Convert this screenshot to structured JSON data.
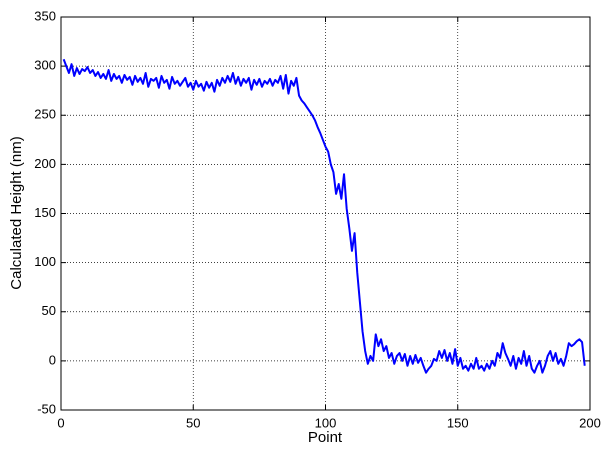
{
  "chart_data": {
    "type": "line",
    "xlabel": "Point",
    "ylabel": "Calculated Height (nm)",
    "x": [
      1,
      2,
      3,
      4,
      5,
      6,
      7,
      8,
      9,
      10,
      11,
      12,
      13,
      14,
      15,
      16,
      17,
      18,
      19,
      20,
      21,
      22,
      23,
      24,
      25,
      26,
      27,
      28,
      29,
      30,
      31,
      32,
      33,
      34,
      35,
      36,
      37,
      38,
      39,
      40,
      41,
      42,
      43,
      44,
      45,
      46,
      47,
      48,
      49,
      50,
      51,
      52,
      53,
      54,
      55,
      56,
      57,
      58,
      59,
      60,
      61,
      62,
      63,
      64,
      65,
      66,
      67,
      68,
      69,
      70,
      71,
      72,
      73,
      74,
      75,
      76,
      77,
      78,
      79,
      80,
      81,
      82,
      83,
      84,
      85,
      86,
      87,
      88,
      89,
      90,
      91,
      92,
      93,
      94,
      95,
      96,
      97,
      98,
      99,
      100,
      101,
      102,
      103,
      104,
      105,
      106,
      107,
      108,
      109,
      110,
      111,
      112,
      113,
      114,
      115,
      116,
      117,
      118,
      119,
      120,
      121,
      122,
      123,
      124,
      125,
      126,
      127,
      128,
      129,
      130,
      131,
      132,
      133,
      134,
      135,
      136,
      137,
      138,
      139,
      140,
      141,
      142,
      143,
      144,
      145,
      146,
      147,
      148,
      149,
      150,
      151,
      152,
      153,
      154,
      155,
      156,
      157,
      158,
      159,
      160,
      161,
      162,
      163,
      164,
      165,
      166,
      167,
      168,
      169,
      170,
      171,
      172,
      173,
      174,
      175,
      176,
      177,
      178,
      179,
      180,
      181,
      182,
      183,
      184,
      185,
      186,
      187,
      188,
      189,
      190,
      191,
      192,
      193,
      194,
      195,
      196,
      197,
      198
    ],
    "series": [
      {
        "color": "#0000ff",
        "values": [
          307,
          300,
          293,
          302,
          290,
          298,
          292,
          297,
          295,
          299,
          293,
          296,
          290,
          294,
          288,
          292,
          287,
          296,
          285,
          292,
          287,
          290,
          283,
          291,
          286,
          289,
          281,
          290,
          284,
          288,
          282,
          293,
          279,
          287,
          285,
          288,
          278,
          290,
          283,
          286,
          277,
          289,
          282,
          285,
          280,
          284,
          288,
          279,
          283,
          276,
          285,
          279,
          282,
          275,
          284,
          278,
          283,
          274,
          286,
          280,
          288,
          283,
          290,
          284,
          293,
          282,
          289,
          280,
          287,
          283,
          288,
          276,
          286,
          281,
          287,
          279,
          285,
          282,
          287,
          280,
          286,
          283,
          290,
          277,
          291,
          272,
          285,
          280,
          288,
          270,
          265,
          262,
          258,
          254,
          250,
          245,
          238,
          232,
          225,
          218,
          213,
          200,
          192,
          170,
          180,
          165,
          190,
          155,
          135,
          112,
          130,
          90,
          60,
          30,
          10,
          -3,
          5,
          0,
          27,
          15,
          22,
          10,
          15,
          3,
          8,
          -3,
          5,
          8,
          0,
          7,
          -5,
          5,
          -3,
          6,
          -2,
          3,
          -5,
          -12,
          -8,
          -5,
          2,
          0,
          10,
          3,
          11,
          0,
          8,
          -3,
          12,
          -5,
          3,
          -8,
          -5,
          -10,
          -3,
          -8,
          3,
          -8,
          -5,
          -10,
          -3,
          -8,
          0,
          -5,
          8,
          3,
          18,
          8,
          2,
          -5,
          5,
          -8,
          3,
          -3,
          10,
          -5,
          5,
          -8,
          -12,
          -5,
          0,
          -12,
          -5,
          5,
          10,
          0,
          8,
          -3,
          2,
          -5,
          5,
          18,
          15,
          17,
          20,
          22,
          19,
          -5
        ]
      }
    ],
    "xlim": [
      0,
      200
    ],
    "xticks": [
      0,
      50,
      100,
      150,
      200
    ],
    "ylim": [
      -50,
      350
    ],
    "yticks": [
      -50,
      0,
      50,
      100,
      150,
      200,
      250,
      300,
      350
    ],
    "grid": true
  }
}
